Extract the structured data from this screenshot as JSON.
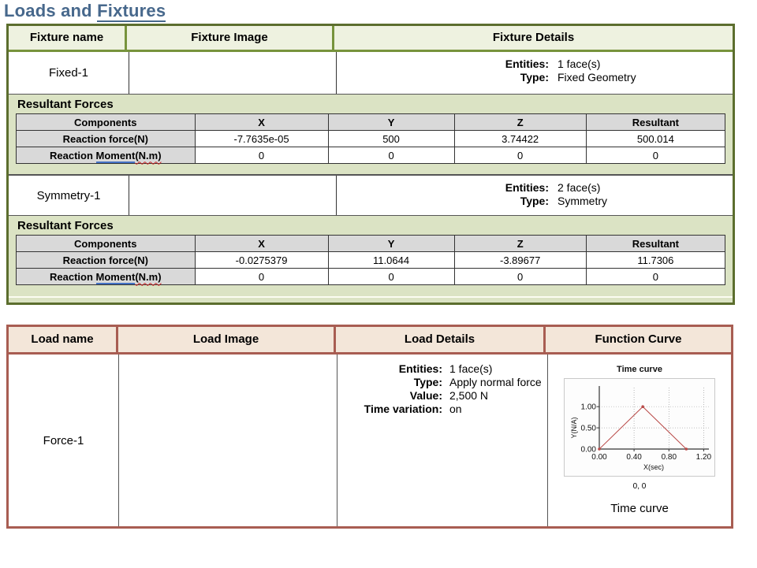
{
  "page": {
    "title_prefix": "Loads and ",
    "title_link": "Fixtures"
  },
  "colors": {
    "title_blue": "#47688c",
    "fixture_border_dark": "#5c6e2e",
    "fixture_border_olive": "#77933c",
    "fixture_header_bg": "#eef2e0",
    "fixture_section_bg": "#dbe3c4",
    "gray_cell_bg": "#d9d9d9",
    "load_border": "#a85d52",
    "load_header_bg": "#f3e6d9",
    "curve_red": "#b94a48"
  },
  "fixtures_table": {
    "headers": [
      "Fixture name",
      "Fixture Image",
      "Fixture Details"
    ],
    "fixtures": [
      {
        "name": "Fixed-1",
        "details": [
          {
            "label": "Entities:",
            "value": "1 face(s)"
          },
          {
            "label": "Type:",
            "value": "Fixed Geometry"
          }
        ],
        "resultant_title": "Resultant Forces",
        "resultant_headers": [
          "Components",
          "X",
          "Y",
          "Z",
          "Resultant"
        ],
        "force_row": {
          "label": "Reaction force(N)",
          "values": [
            "-7.7635e-05",
            "500",
            "3.74422",
            "500.014"
          ]
        },
        "moment_row": {
          "label_prefix": "Reaction ",
          "label_underlined": "Moment",
          "label_wavy": "(N.m)",
          "values": [
            "0",
            "0",
            "0",
            "0"
          ]
        }
      },
      {
        "name": "Symmetry-1",
        "details": [
          {
            "label": "Entities:",
            "value": "2 face(s)"
          },
          {
            "label": "Type:",
            "value": "Symmetry"
          }
        ],
        "resultant_title": "Resultant Forces",
        "resultant_headers": [
          "Components",
          "X",
          "Y",
          "Z",
          "Resultant"
        ],
        "force_row": {
          "label": "Reaction force(N)",
          "values": [
            "-0.0275379",
            "11.0644",
            "-3.89677",
            "11.7306"
          ]
        },
        "moment_row": {
          "label_prefix": "Reaction ",
          "label_underlined": "Moment",
          "label_wavy": "(N.m)",
          "values": [
            "0",
            "0",
            "0",
            "0"
          ]
        }
      }
    ]
  },
  "loads_table": {
    "headers": [
      "Load name",
      "Load Image",
      "Load Details",
      "Function Curve"
    ],
    "loads": [
      {
        "name": "Force-1",
        "details": [
          {
            "label": "Entities:",
            "value": "1 face(s)"
          },
          {
            "label": "Type:",
            "value": "Apply normal force"
          },
          {
            "label": "Value:",
            "value": "2,500 N"
          },
          {
            "label": "Time variation:",
            "value": "on"
          }
        ],
        "curve_origin_label": "0, 0",
        "curve_caption": "Time curve"
      }
    ]
  },
  "chart_data": {
    "type": "line",
    "title": "Time curve",
    "xlabel": "X(sec)",
    "ylabel": "Y(N/A)",
    "x": [
      0,
      0.5,
      1.0
    ],
    "y": [
      0,
      1,
      0
    ],
    "series": [
      {
        "name": "Time curve",
        "values": [
          [
            0,
            0
          ],
          [
            0.5,
            1
          ],
          [
            1.0,
            0
          ]
        ]
      }
    ],
    "xticks": [
      0,
      0.4,
      0.8,
      1.2
    ],
    "xtick_labels": [
      "0.00",
      "0.40",
      "0.80",
      "1.20"
    ],
    "yticks": [
      0,
      0.5,
      1.0
    ],
    "ytick_labels": [
      "0.00",
      "0.50",
      "1.00"
    ],
    "xlim": [
      0,
      1.26
    ],
    "ylim": [
      0,
      1.45
    ],
    "grid": true,
    "legend": "none",
    "line_color": "#b94a48"
  }
}
